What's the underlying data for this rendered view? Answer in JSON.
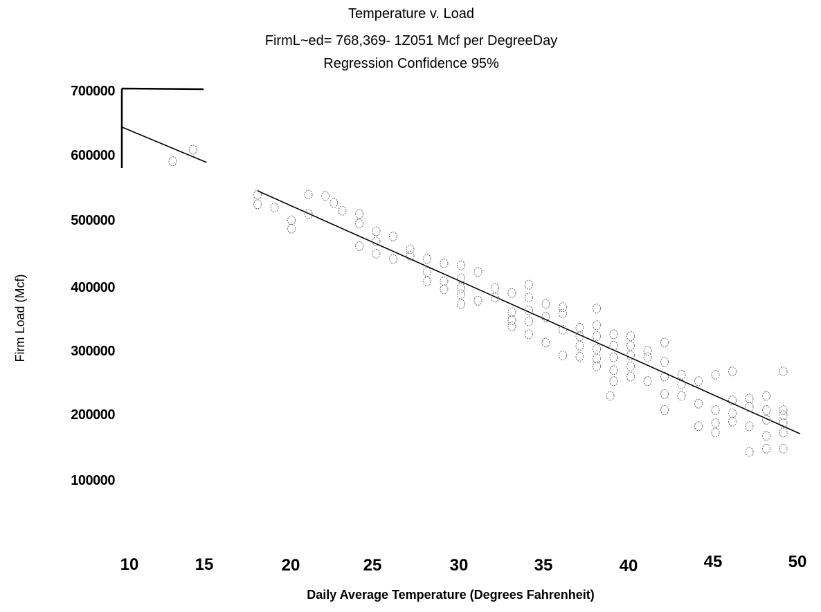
{
  "chart_data": {
    "type": "scatter",
    "title": "Temperature v. Load",
    "subtitle": "FirmL~ed= 768,369- 1Z051 Mcf per DegreeDay",
    "subtitle2": "Regression Confidence 95%",
    "xlabel": "Daily Average Temperature (Degrees Fahrenheit)",
    "ylabel": "Firm Load (Mcf)",
    "x_ticks": [
      "10",
      "15",
      "20",
      "25",
      "30",
      "35",
      "40",
      "45",
      "50"
    ],
    "y_ticks": [
      "700000",
      "600000",
      "500000",
      "400000",
      "300000",
      "200000",
      "100000"
    ],
    "xlim": [
      10,
      50
    ],
    "ylim": [
      100000,
      700000
    ],
    "grid": false,
    "legend": "none",
    "regression_line": [
      {
        "x": 10,
        "y": 640000
      },
      {
        "x": 15,
        "y": 585000
      },
      {
        "x": 18,
        "y": 541000
      },
      {
        "x": 31.5,
        "y": 382000
      },
      {
        "x": 50,
        "y": 163000
      }
    ],
    "points": [
      {
        "x": 13,
        "y": 587000
      },
      {
        "x": 14.2,
        "y": 605000
      },
      {
        "x": 18,
        "y": 535000
      },
      {
        "x": 18,
        "y": 520000
      },
      {
        "x": 19,
        "y": 515000
      },
      {
        "x": 20,
        "y": 495000
      },
      {
        "x": 20,
        "y": 482000
      },
      {
        "x": 21,
        "y": 535000
      },
      {
        "x": 21,
        "y": 505000
      },
      {
        "x": 22,
        "y": 533000
      },
      {
        "x": 22.5,
        "y": 522000
      },
      {
        "x": 23,
        "y": 510000
      },
      {
        "x": 24,
        "y": 505000
      },
      {
        "x": 24,
        "y": 490000
      },
      {
        "x": 24,
        "y": 455000
      },
      {
        "x": 25,
        "y": 478000
      },
      {
        "x": 25,
        "y": 462000
      },
      {
        "x": 25,
        "y": 443000
      },
      {
        "x": 26,
        "y": 470000
      },
      {
        "x": 26,
        "y": 435000
      },
      {
        "x": 27,
        "y": 450000
      },
      {
        "x": 27,
        "y": 440000
      },
      {
        "x": 28,
        "y": 435000
      },
      {
        "x": 28,
        "y": 415000
      },
      {
        "x": 28,
        "y": 400000
      },
      {
        "x": 29,
        "y": 428000
      },
      {
        "x": 29,
        "y": 400000
      },
      {
        "x": 29,
        "y": 388000
      },
      {
        "x": 30,
        "y": 425000
      },
      {
        "x": 30,
        "y": 405000
      },
      {
        "x": 30,
        "y": 390000
      },
      {
        "x": 30,
        "y": 380000
      },
      {
        "x": 30,
        "y": 365000
      },
      {
        "x": 31,
        "y": 415000
      },
      {
        "x": 31,
        "y": 370000
      },
      {
        "x": 32,
        "y": 390000
      },
      {
        "x": 32,
        "y": 375000
      },
      {
        "x": 33,
        "y": 382000
      },
      {
        "x": 33,
        "y": 352000
      },
      {
        "x": 33,
        "y": 340000
      },
      {
        "x": 33,
        "y": 330000
      },
      {
        "x": 34,
        "y": 395000
      },
      {
        "x": 34,
        "y": 375000
      },
      {
        "x": 34,
        "y": 355000
      },
      {
        "x": 34,
        "y": 338000
      },
      {
        "x": 34,
        "y": 318000
      },
      {
        "x": 35,
        "y": 365000
      },
      {
        "x": 35,
        "y": 345000
      },
      {
        "x": 35,
        "y": 305000
      },
      {
        "x": 36,
        "y": 360000
      },
      {
        "x": 36,
        "y": 350000
      },
      {
        "x": 36,
        "y": 325000
      },
      {
        "x": 36,
        "y": 285000
      },
      {
        "x": 37,
        "y": 328000
      },
      {
        "x": 37,
        "y": 315000
      },
      {
        "x": 37,
        "y": 300000
      },
      {
        "x": 37,
        "y": 283000
      },
      {
        "x": 38,
        "y": 358000
      },
      {
        "x": 38,
        "y": 332000
      },
      {
        "x": 38,
        "y": 315000
      },
      {
        "x": 38,
        "y": 295000
      },
      {
        "x": 38,
        "y": 280000
      },
      {
        "x": 38,
        "y": 268000
      },
      {
        "x": 39,
        "y": 318000
      },
      {
        "x": 39,
        "y": 300000
      },
      {
        "x": 39,
        "y": 282000
      },
      {
        "x": 39,
        "y": 262000
      },
      {
        "x": 39,
        "y": 245000
      },
      {
        "x": 38.8,
        "y": 222000
      },
      {
        "x": 40,
        "y": 315000
      },
      {
        "x": 40,
        "y": 300000
      },
      {
        "x": 40,
        "y": 285000
      },
      {
        "x": 40,
        "y": 268000
      },
      {
        "x": 40,
        "y": 252000
      },
      {
        "x": 41,
        "y": 292000
      },
      {
        "x": 41,
        "y": 282000
      },
      {
        "x": 41,
        "y": 245000
      },
      {
        "x": 42,
        "y": 305000
      },
      {
        "x": 42,
        "y": 275000
      },
      {
        "x": 42,
        "y": 252000
      },
      {
        "x": 42,
        "y": 225000
      },
      {
        "x": 42,
        "y": 200000
      },
      {
        "x": 43,
        "y": 255000
      },
      {
        "x": 43,
        "y": 240000
      },
      {
        "x": 43,
        "y": 222000
      },
      {
        "x": 44,
        "y": 245000
      },
      {
        "x": 44,
        "y": 210000
      },
      {
        "x": 44,
        "y": 175000
      },
      {
        "x": 45,
        "y": 255000
      },
      {
        "x": 45,
        "y": 200000
      },
      {
        "x": 45,
        "y": 180000
      },
      {
        "x": 45,
        "y": 165000
      },
      {
        "x": 46,
        "y": 260000
      },
      {
        "x": 46,
        "y": 215000
      },
      {
        "x": 46,
        "y": 195000
      },
      {
        "x": 46,
        "y": 182000
      },
      {
        "x": 47,
        "y": 218000
      },
      {
        "x": 47,
        "y": 205000
      },
      {
        "x": 47,
        "y": 175000
      },
      {
        "x": 47,
        "y": 135000
      },
      {
        "x": 48,
        "y": 222000
      },
      {
        "x": 48,
        "y": 200000
      },
      {
        "x": 48,
        "y": 185000
      },
      {
        "x": 48,
        "y": 160000
      },
      {
        "x": 48,
        "y": 140000
      },
      {
        "x": 49,
        "y": 260000
      },
      {
        "x": 49,
        "y": 200000
      },
      {
        "x": 49,
        "y": 192000
      },
      {
        "x": 49,
        "y": 180000
      },
      {
        "x": 49,
        "y": 165000
      },
      {
        "x": 49,
        "y": 140000
      }
    ]
  }
}
